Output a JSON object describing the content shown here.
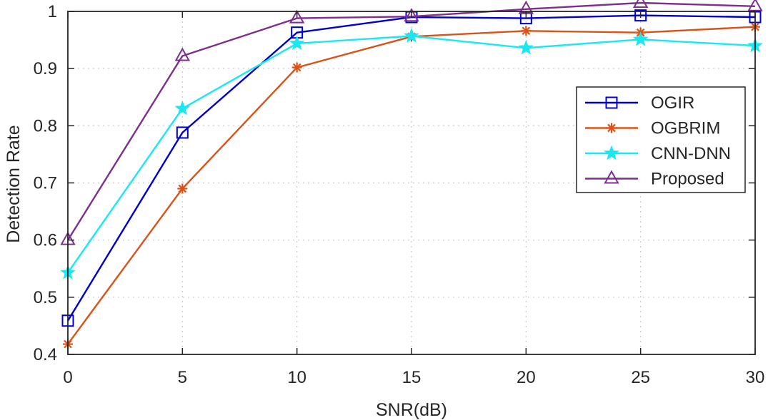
{
  "chart_data": {
    "type": "line",
    "title": "",
    "xlabel": "SNR(dB)",
    "ylabel": "Detection Rate",
    "xlim": [
      0,
      30
    ],
    "ylim": [
      0.4,
      1.0
    ],
    "x": [
      0,
      5,
      10,
      15,
      20,
      25,
      30
    ],
    "xticks": [
      "0",
      "5",
      "10",
      "15",
      "20",
      "25",
      "30"
    ],
    "yticks": [
      "0.4",
      "0.5",
      "0.6",
      "0.7",
      "0.8",
      "0.9",
      "1"
    ],
    "grid": true,
    "legend_position": "right",
    "series": [
      {
        "name": "OGIR",
        "color": "#0000CD",
        "marker": "square",
        "values": [
          0.459,
          0.788,
          0.963,
          0.99,
          0.988,
          0.993,
          0.99
        ]
      },
      {
        "name": "OGBRIM",
        "color": "#D95319",
        "marker": "asterisk",
        "values": [
          0.418,
          0.69,
          0.902,
          0.956,
          0.966,
          0.963,
          0.973
        ]
      },
      {
        "name": "CNN-DNN",
        "color": "#1AE8F0",
        "marker": "star",
        "values": [
          0.543,
          0.83,
          0.944,
          0.957,
          0.936,
          0.951,
          0.94
        ]
      },
      {
        "name": "Proposed",
        "color": "#7E2F8E",
        "marker": "triangle",
        "values": [
          0.6,
          0.922,
          0.988,
          0.991,
          1.004,
          1.015,
          1.009
        ]
      }
    ]
  }
}
